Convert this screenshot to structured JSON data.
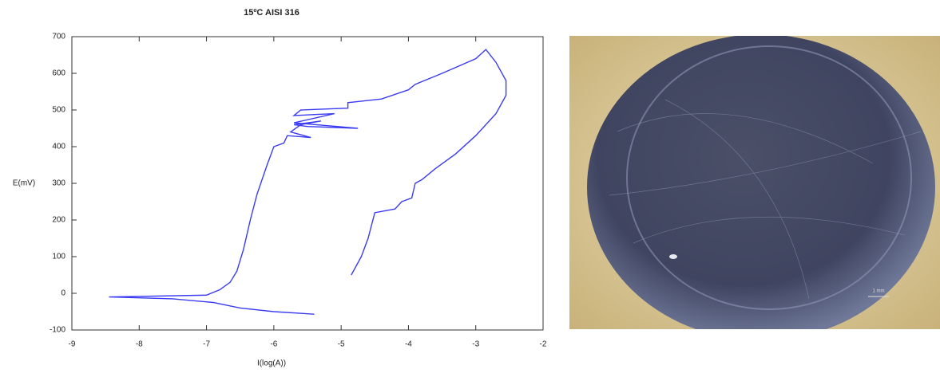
{
  "chart_data": {
    "type": "line",
    "title": "15ºC AISI 316",
    "x_label": "I(log(A))",
    "y_label": "E(mV)",
    "x": [
      -5.4,
      -6.0,
      -6.5,
      -6.9,
      -7.5,
      -8.45,
      -7.0,
      -6.8,
      -6.65,
      -6.55,
      -6.45,
      -6.35,
      -6.25,
      -6.1,
      -6.0,
      -5.85,
      -5.8,
      -5.45,
      -5.75,
      -5.6,
      -5.3,
      -5.7,
      -5.5,
      -4.75,
      -5.7,
      -5.1,
      -5.7,
      -5.6,
      -4.9,
      -4.9,
      -4.4,
      -4.0,
      -3.9,
      -3.5,
      -3.0,
      -2.85,
      -2.7,
      -2.55,
      -2.55,
      -2.7,
      -3.0,
      -3.3,
      -3.6,
      -3.8,
      -3.9,
      -3.95,
      -4.1,
      -4.2,
      -4.5,
      -4.6,
      -4.7,
      -4.85
    ],
    "series": [
      {
        "name": "E",
        "color": "#3b3bf2",
        "values": [
          -57,
          -50,
          -40,
          -25,
          -15,
          -10,
          -5,
          10,
          30,
          60,
          120,
          200,
          270,
          350,
          400,
          410,
          430,
          425,
          440,
          460,
          470,
          460,
          455,
          450,
          465,
          490,
          485,
          500,
          505,
          520,
          530,
          555,
          570,
          600,
          640,
          665,
          630,
          580,
          540,
          490,
          430,
          380,
          340,
          310,
          300,
          260,
          250,
          230,
          220,
          150,
          100,
          50
        ]
      }
    ],
    "xlim": [
      -9,
      -2
    ],
    "xticks": [
      -9,
      -8,
      -7,
      -6,
      -5,
      -4,
      -3,
      -2
    ],
    "ylim": [
      -100,
      700
    ],
    "yticks": [
      -100,
      0,
      100,
      200,
      300,
      400,
      500,
      600,
      700
    ],
    "grid": false
  },
  "image": {
    "scale_label": "1 mm"
  }
}
